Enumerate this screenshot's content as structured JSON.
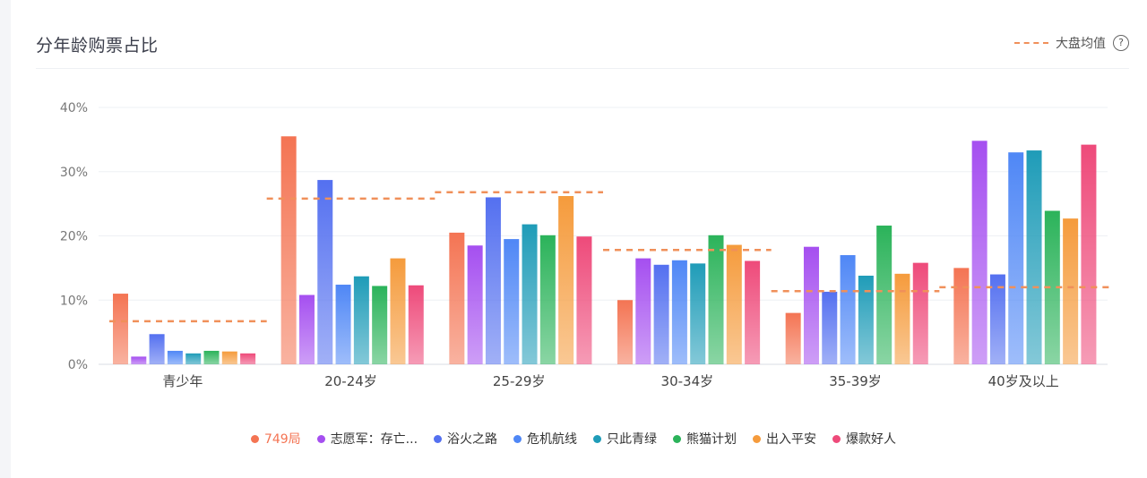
{
  "header": {
    "title": "分年龄购票占比",
    "avg_label": "大盘均值",
    "help_icon": "question-circle-icon"
  },
  "colors": {
    "series": [
      "#f47453",
      "#a54ff0",
      "#5470f0",
      "#4f87f6",
      "#1f9cb8",
      "#2bb35a",
      "#f59b3c",
      "#ee4a7a"
    ],
    "average_line": "#f0905a",
    "first_legend_text": "#f47453"
  },
  "chart_data": {
    "type": "bar",
    "categories": [
      "青少年",
      "20-24岁",
      "25-29岁",
      "30-34岁",
      "35-39岁",
      "40岁及以上"
    ],
    "ylim": [
      0,
      40
    ],
    "yticks": [
      "0%",
      "10%",
      "20%",
      "30%",
      "40%"
    ],
    "grid": true,
    "legend_position": "bottom",
    "series": [
      {
        "name": "749局",
        "values": [
          11,
          35.5,
          20.5,
          10,
          8,
          15
        ]
      },
      {
        "name": "志愿军：存亡...",
        "values": [
          1.2,
          10.8,
          18.5,
          16.5,
          18.3,
          34.8
        ]
      },
      {
        "name": "浴火之路",
        "values": [
          4.7,
          28.7,
          26,
          15.5,
          11.3,
          14
        ]
      },
      {
        "name": "危机航线",
        "values": [
          2.1,
          12.4,
          19.5,
          16.2,
          17,
          33
        ]
      },
      {
        "name": "只此青绿",
        "values": [
          1.7,
          13.7,
          21.8,
          15.7,
          13.8,
          33.3
        ]
      },
      {
        "name": "熊猫计划",
        "values": [
          2.1,
          12.2,
          20.1,
          20.1,
          21.6,
          23.9
        ]
      },
      {
        "name": "出入平安",
        "values": [
          2,
          16.5,
          26.2,
          18.6,
          14.1,
          22.7
        ]
      },
      {
        "name": "爆款好人",
        "values": [
          1.7,
          12.3,
          19.9,
          16.1,
          15.8,
          34.2
        ]
      }
    ],
    "average": [
      6.7,
      25.8,
      26.8,
      17.8,
      11.4,
      12
    ]
  }
}
